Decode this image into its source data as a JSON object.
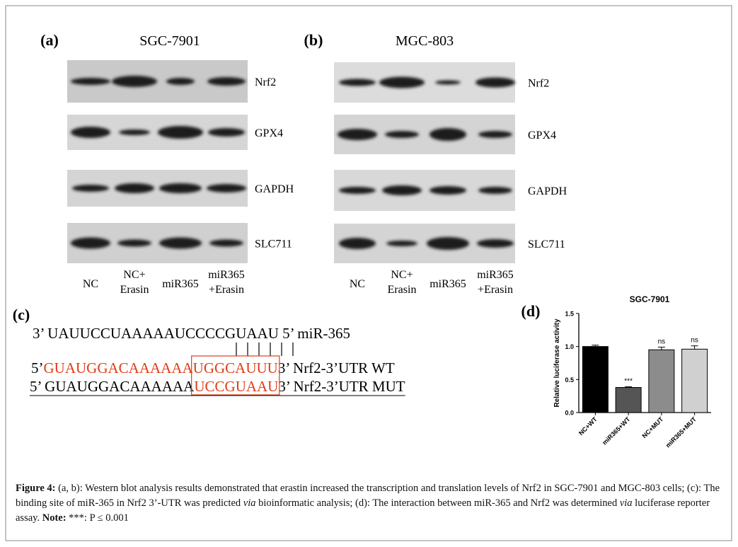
{
  "panel_a": {
    "label": "(a)",
    "title": "SGC-7901",
    "rows": [
      "Nrf2",
      "GPX4",
      "GAPDH",
      "SLC711"
    ],
    "lanes": [
      [
        "NC"
      ],
      [
        "NC+",
        "Erasin"
      ],
      [
        "miR365"
      ],
      [
        "miR365",
        "+Erasin"
      ]
    ]
  },
  "panel_b": {
    "label": "(b)",
    "title": "MGC-803",
    "rows": [
      "Nrf2",
      "GPX4",
      "GAPDH",
      "SLC711"
    ],
    "lanes": [
      [
        "NC"
      ],
      [
        "NC+",
        "Erasin"
      ],
      [
        "miR365"
      ],
      [
        "miR365",
        "+Erasin"
      ]
    ]
  },
  "panel_c": {
    "label": "(c)",
    "mirna": [
      "3’ UAUUCCUAAAAAUCCCCGUAAU 5’ miR-365"
    ],
    "wt": [
      "5’ ",
      "GUAUGGACAAAAAA",
      "UGGCAUUU",
      " 3’ Nrf2-3’UTR WT"
    ],
    "mut": [
      "5’ GUAUGGACAAAAAA",
      "UCCGUAAU",
      " 3’ Nrf2-3’UTR MUT"
    ]
  },
  "panel_d": {
    "label": "(d)"
  },
  "chart_data": {
    "type": "bar",
    "title": "SGC-7901",
    "y_label": "Relative luciferase activity",
    "categories": [
      "NC+WT",
      "miR365+WT",
      "NC+MUT",
      "miR365+MUT"
    ],
    "values": [
      1.0,
      0.38,
      0.95,
      0.96
    ],
    "errors": [
      0.02,
      0.01,
      0.04,
      0.05
    ],
    "significance": [
      null,
      "***",
      "ns",
      "ns"
    ],
    "colors": [
      "#000000",
      "#555555",
      "#8c8c8c",
      "#d0d0d0"
    ],
    "ylim": [
      0,
      1.5
    ],
    "yticks": [
      {
        "value": 0,
        "label": "0.0"
      },
      0.5,
      {
        "value": 1,
        "label": "1.0"
      },
      1.5
    ]
  },
  "caption": [
    {
      "text": "Figure 4:",
      "style": "bold"
    },
    {
      "text": " (a, b): Western blot analysis results demonstrated that erastin increased the transcription and translation levels of Nrf2 in SGC-7901 and MGC-803 cells; (c): The binding site of miR-365 in Nrf2 3’-UTR was predicted ",
      "style": "normal"
    },
    {
      "text": "via",
      "style": "italic"
    },
    {
      "text": " bioinformatic analysis; (d): The interaction between miR-365 and Nrf2 was determined ",
      "style": "normal"
    },
    {
      "text": "via",
      "style": "italic"
    },
    {
      "text": " luciferase reporter assay. ",
      "style": "normal"
    },
    {
      "text": "Note:",
      "style": "bold"
    },
    {
      "text": " ***: P ≤ 0.001",
      "style": "normal"
    }
  ]
}
